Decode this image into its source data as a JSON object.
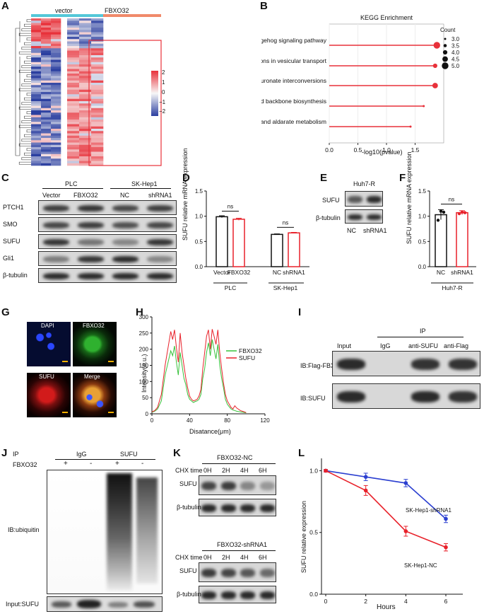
{
  "panel_labels": {
    "A": "A",
    "B": "B",
    "C": "C",
    "D": "D",
    "E": "E",
    "F": "F",
    "G": "G",
    "H": "H",
    "I": "I",
    "J": "J",
    "K": "K",
    "L": "L"
  },
  "panelA": {
    "groups": [
      "vector",
      "FBXO32"
    ],
    "group_colors": [
      "#54c8d8",
      "#f08a6a"
    ],
    "colorbar_ticks": [
      "2",
      "1",
      "0",
      "−1",
      "−2"
    ],
    "colors": {
      "high": "#e8313a",
      "mid": "#f7f7f7",
      "low": "#2b3fa0"
    }
  },
  "panelB": {
    "title": "KEGG Enrichment",
    "legend_title": "Count",
    "legend_ticks": [
      "3.0",
      "3.5",
      "4.0",
      "4.5",
      "5.0"
    ],
    "xlabel": "-log10(pvalue)",
    "xticks": [
      "0.0",
      "0.5",
      "1.0",
      "1.5"
    ]
  },
  "panelC": {
    "group_headers": [
      "PLC",
      "SK-Hep1"
    ],
    "lanes": [
      "Vector",
      "FBXO32",
      "NC",
      "shRNA1"
    ],
    "rows": [
      "PTCH1",
      "SMO",
      "SUFU",
      "Gli1",
      "β-tubulin"
    ]
  },
  "panelD": {
    "ylabel": "SUFU relative mRNA expression",
    "yticks": [
      "0.0",
      "0.5",
      "1.0",
      "1.5"
    ],
    "ns_labels": [
      "ns",
      "ns"
    ],
    "xticks": [
      "Vector",
      "FBXO32",
      "NC",
      "shRNA1"
    ],
    "groups": [
      "PLC",
      "SK-Hep1"
    ]
  },
  "panelE": {
    "cell_line": "Huh7-R",
    "rows": [
      "SUFU",
      "β-tubulin"
    ],
    "lanes": [
      "NC",
      "shRNA1"
    ]
  },
  "panelF": {
    "ylabel": "SUFU relative mRNA expression",
    "yticks": [
      "0.0",
      "0.5",
      "1.0",
      "1.5"
    ],
    "ns_label": "ns",
    "xticks": [
      "NC",
      "shRNA1"
    ],
    "group": "Huh7-R"
  },
  "panelG": {
    "labels": [
      "DAPI",
      "FBXO32",
      "SUFU",
      "Merge"
    ]
  },
  "panelH": {
    "ylabel": "Intensity(a.u.)",
    "xlabel": "Disatance(μm)",
    "yticks": [
      "0",
      "50",
      "100",
      "150",
      "200",
      "250",
      "300"
    ],
    "xticks": [
      "0",
      "40",
      "80",
      "120"
    ],
    "legend": [
      "FBXO32",
      "SUFU"
    ],
    "colors": {
      "FBXO32": "#39c23c",
      "SUFU": "#e8212a"
    }
  },
  "panelI": {
    "ip_label": "IP",
    "lanes": [
      "Input",
      "IgG",
      "anti-SUFU",
      "anti-Flag"
    ],
    "rows": [
      "IB:Flag-FBXO32",
      "IB:SUFU"
    ]
  },
  "panelJ": {
    "ip_label": "IP",
    "ip_groups": [
      "IgG",
      "SUFU"
    ],
    "row_label": "FBXO32",
    "signs": [
      "+",
      "-",
      "+",
      "-"
    ],
    "blot_label": "IB:ubiquitin",
    "input_label": "Input:SUFU"
  },
  "panelK": {
    "blocks": [
      {
        "title": "FBXO32-NC",
        "chx_label": "CHX time",
        "times": [
          "0H",
          "2H",
          "4H",
          "6H"
        ],
        "rows": [
          "SUFU",
          "β-tubulin"
        ]
      },
      {
        "title": "FBXO32-shRNA1",
        "chx_label": "CHX time",
        "times": [
          "0H",
          "2H",
          "4H",
          "6H"
        ],
        "rows": [
          "SUFU",
          "β-tubulin"
        ]
      }
    ]
  },
  "panelL": {
    "ylabel": "SUFU relative expression",
    "xlabel": "Hours",
    "yticks": [
      "0.0",
      "0.5",
      "1.0"
    ],
    "xticks": [
      "0",
      "2",
      "4",
      "6"
    ],
    "series_labels": [
      "SK-Hep1-shRNA1",
      "SK-Hep1-NC"
    ],
    "colors": {
      "SK-Hep1-shRNA1": "#2b3fd0",
      "SK-Hep1-NC": "#e8212a"
    }
  },
  "chart_data": [
    {
      "type": "scatter",
      "title": "KEGG Enrichment",
      "xlabel": "-log10(pvalue)",
      "categories": [
        "Hedgehog signaling pathway",
        "SNARE interactions in vesicular transport",
        "Pentose and glucuronate interconversions",
        "Terpenoid backbone biosynthesis",
        "Ascorbate and aldarate metabolism"
      ],
      "values": [
        1.88,
        1.85,
        1.85,
        1.65,
        1.42
      ],
      "count": [
        5,
        4,
        4.5,
        3,
        3
      ],
      "xlim": [
        0,
        2
      ],
      "legend": "right"
    },
    {
      "type": "bar",
      "ylabel": "SUFU relative mRNA expression",
      "categories": [
        "Vector",
        "FBXO32",
        "NC",
        "shRNA1"
      ],
      "values": [
        0.99,
        0.94,
        0.64,
        0.67
      ],
      "errors": [
        0.02,
        0.02,
        0.01,
        0.01
      ],
      "ylim": [
        0,
        1.5
      ]
    },
    {
      "type": "bar",
      "ylabel": "SUFU relative mRNA expression",
      "categories": [
        "NC",
        "shRNA1"
      ],
      "values": [
        1.03,
        1.07
      ],
      "errors": [
        0.1,
        0.04
      ],
      "points": [
        [
          0.92,
          1.1,
          1.08
        ],
        [
          1.05,
          1.08,
          1.07
        ]
      ],
      "ylim": [
        0,
        1.5
      ]
    },
    {
      "type": "line",
      "ylabel": "Intensity(a.u.)",
      "xlabel": "Disatance(μm)",
      "xlim": [
        0,
        120
      ],
      "ylim": [
        0,
        300
      ],
      "series": [
        {
          "name": "FBXO32",
          "x": [
            0,
            3,
            6,
            10,
            14,
            18,
            20,
            22,
            24,
            26,
            28,
            30,
            32,
            34,
            36,
            38,
            40,
            42,
            44,
            46,
            48,
            50,
            52,
            54,
            56,
            58,
            60,
            62,
            64,
            66,
            68,
            70,
            72,
            74,
            76,
            78,
            80,
            82,
            84,
            86,
            88,
            90,
            94,
            98,
            100
          ],
          "values": [
            5,
            8,
            15,
            40,
            120,
            170,
            195,
            180,
            210,
            160,
            120,
            190,
            150,
            110,
            90,
            60,
            45,
            40,
            35,
            38,
            40,
            45,
            60,
            110,
            140,
            190,
            220,
            180,
            230,
            200,
            170,
            215,
            150,
            110,
            80,
            45,
            30,
            22,
            15,
            12,
            10,
            8,
            6,
            4,
            3
          ]
        },
        {
          "name": "SUFU",
          "x": [
            0,
            3,
            6,
            10,
            14,
            18,
            20,
            22,
            24,
            26,
            28,
            30,
            32,
            34,
            36,
            38,
            40,
            42,
            44,
            46,
            48,
            50,
            52,
            54,
            56,
            58,
            60,
            62,
            64,
            66,
            68,
            70,
            72,
            74,
            76,
            78,
            80,
            82,
            84,
            86,
            88,
            90,
            94,
            98,
            100
          ],
          "values": [
            6,
            10,
            20,
            60,
            150,
            220,
            255,
            230,
            260,
            205,
            160,
            250,
            190,
            150,
            110,
            80,
            55,
            45,
            40,
            42,
            45,
            55,
            75,
            140,
            190,
            240,
            260,
            200,
            262,
            240,
            215,
            260,
            190,
            140,
            95,
            60,
            40,
            30,
            20,
            15,
            25,
            18,
            10,
            6,
            4
          ]
        }
      ]
    },
    {
      "type": "line",
      "ylabel": "SUFU relative expression",
      "xlabel": "Hours",
      "x": [
        0,
        2,
        4,
        6
      ],
      "ylim": [
        0,
        1.1
      ],
      "series": [
        {
          "name": "SK-Hep1-shRNA1",
          "values": [
            1.0,
            0.95,
            0.9,
            0.61
          ],
          "errors": [
            0.01,
            0.03,
            0.03,
            0.03
          ]
        },
        {
          "name": "SK-Hep1-NC",
          "values": [
            1.0,
            0.84,
            0.51,
            0.38
          ],
          "errors": [
            0.01,
            0.04,
            0.04,
            0.03
          ]
        }
      ]
    }
  ]
}
